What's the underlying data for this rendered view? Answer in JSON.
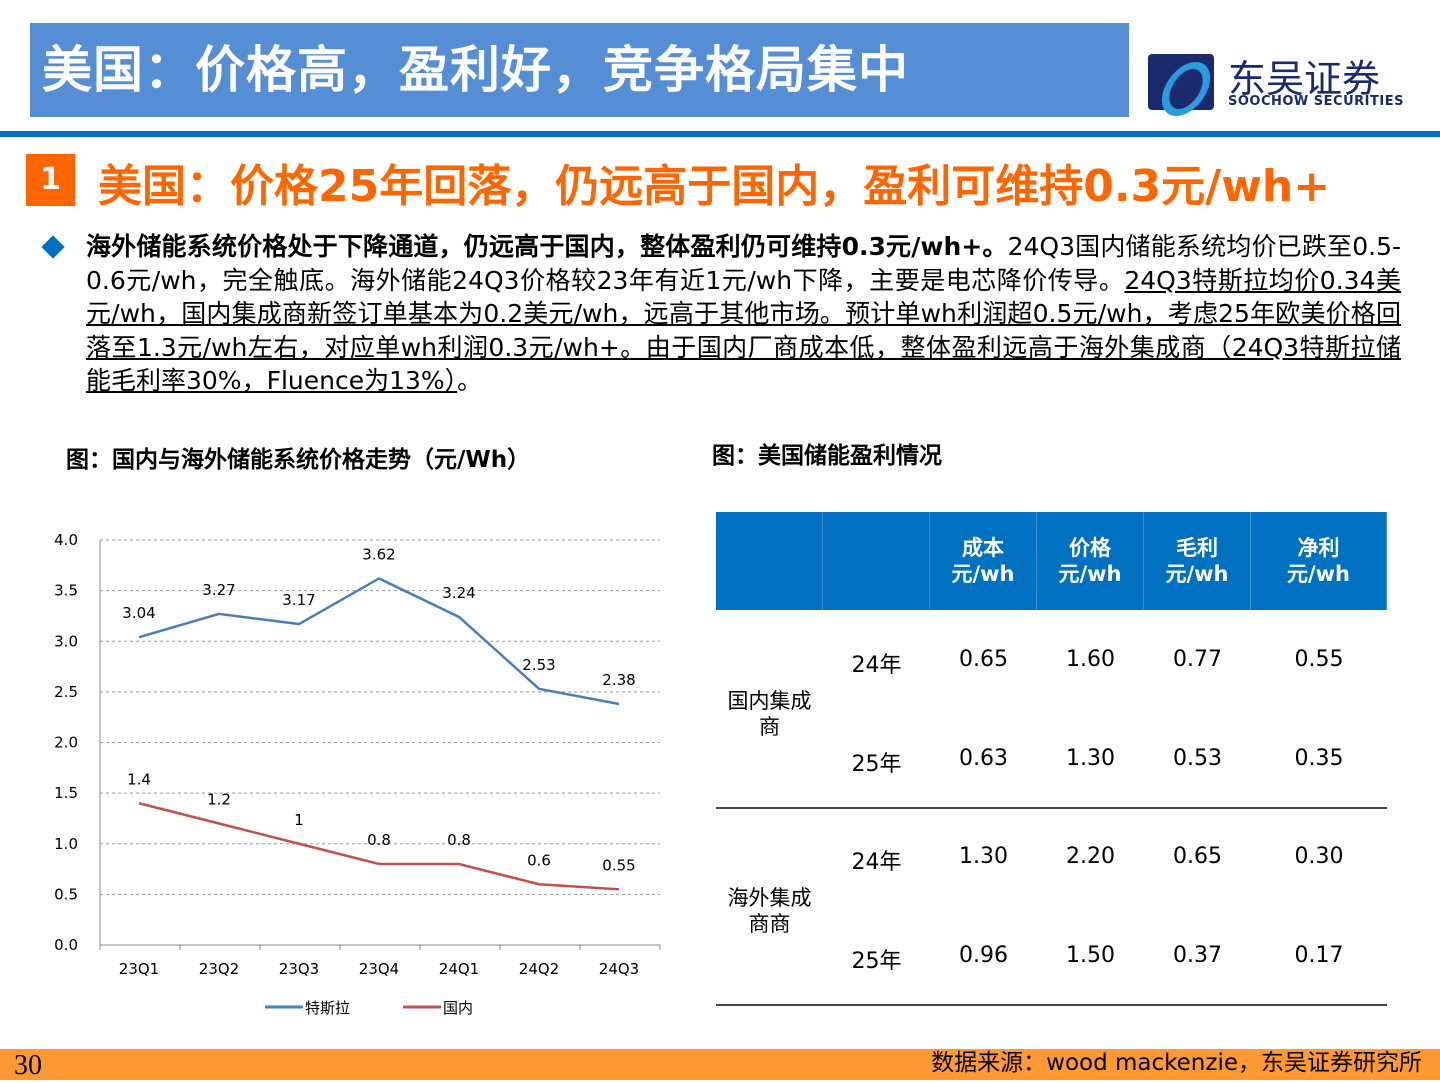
{
  "header": {
    "title": "美国：价格高，盈利好，竞争格局集中",
    "logo_cn": "东吴证券",
    "logo_en": "SOOCHOW SECURITIES"
  },
  "section": {
    "number": "1",
    "title": "美国：价格25年回落，仍远高于国内，盈利可维持0.3元/wh+"
  },
  "body": {
    "bold": "海外储能系统价格处于下降通道，仍远高于国内，整体盈利仍可维持0.3元/wh+。",
    "plain": "24Q3国内储能系统均价已跌至0.5-0.6元/wh，完全触底。海外储能24Q3价格较23年有近1元/wh下降，主要是电芯降价传导。",
    "underlined": "24Q3特斯拉均价0.34美元/wh，国内集成商新签订单基本为0.2美元/wh，远高于其他市场。预计单wh利润超0.5元/wh，考虑25年欧美价格回落至1.3元/wh左右，对应单wh利润0.3元/wh+。由于国内厂商成本低，整体盈利远高于海外集成商（24Q3特斯拉储能毛利率30%，Fluence为13%）",
    "tail": "。"
  },
  "chart_caption": "图：国内与海外储能系统价格走势（元/Wh）",
  "table_caption": "图：美国储能盈利情况",
  "chart_data": {
    "type": "line",
    "categories": [
      "23Q1",
      "23Q2",
      "23Q3",
      "23Q4",
      "24Q1",
      "24Q2",
      "24Q3"
    ],
    "ylim": [
      0,
      4
    ],
    "yticks": [
      "0.0",
      "0.5",
      "1.0",
      "1.5",
      "2.0",
      "2.5",
      "3.0",
      "3.5",
      "4.0"
    ],
    "grid": true,
    "legend": "bottom",
    "series": [
      {
        "name": "特斯拉",
        "color": "#4a7ebb",
        "values": [
          3.04,
          3.27,
          3.17,
          3.62,
          3.24,
          2.53,
          2.38
        ],
        "labels": [
          "3.04",
          "3.27",
          "3.17",
          "3.62",
          "3.24",
          "2.53",
          "2.38"
        ]
      },
      {
        "name": "国内",
        "color": "#c0504d",
        "values": [
          1.4,
          1.2,
          1,
          0.8,
          0.8,
          0.6,
          0.55
        ],
        "labels": [
          "1.4",
          "1.2",
          "1",
          "0.8",
          "0.8",
          "0.6",
          "0.55"
        ]
      }
    ]
  },
  "table": {
    "headers": [
      "",
      "",
      "成本\n元/wh",
      "价格\n元/wh",
      "毛利\n元/wh",
      "净利\n元/wh"
    ],
    "groups": [
      {
        "name": "国内集成\n商",
        "rows": [
          [
            "24年",
            "0.65",
            "1.60",
            "0.77",
            "0.55"
          ],
          [
            "25年",
            "0.63",
            "1.30",
            "0.53",
            "0.35"
          ]
        ]
      },
      {
        "name": "海外集成\n商商",
        "rows": [
          [
            "24年",
            "1.30",
            "2.20",
            "0.65",
            "0.30"
          ],
          [
            "25年",
            "0.96",
            "1.50",
            "0.37",
            "0.17"
          ]
        ]
      }
    ]
  },
  "footer": {
    "page": "30",
    "source": "数据来源：wood mackenzie，东吴证券研究所"
  },
  "colors": {
    "title_bg": "#558ed5",
    "accent": "#ff6600",
    "rule": "#0070c0",
    "footer": "#ff9933"
  }
}
